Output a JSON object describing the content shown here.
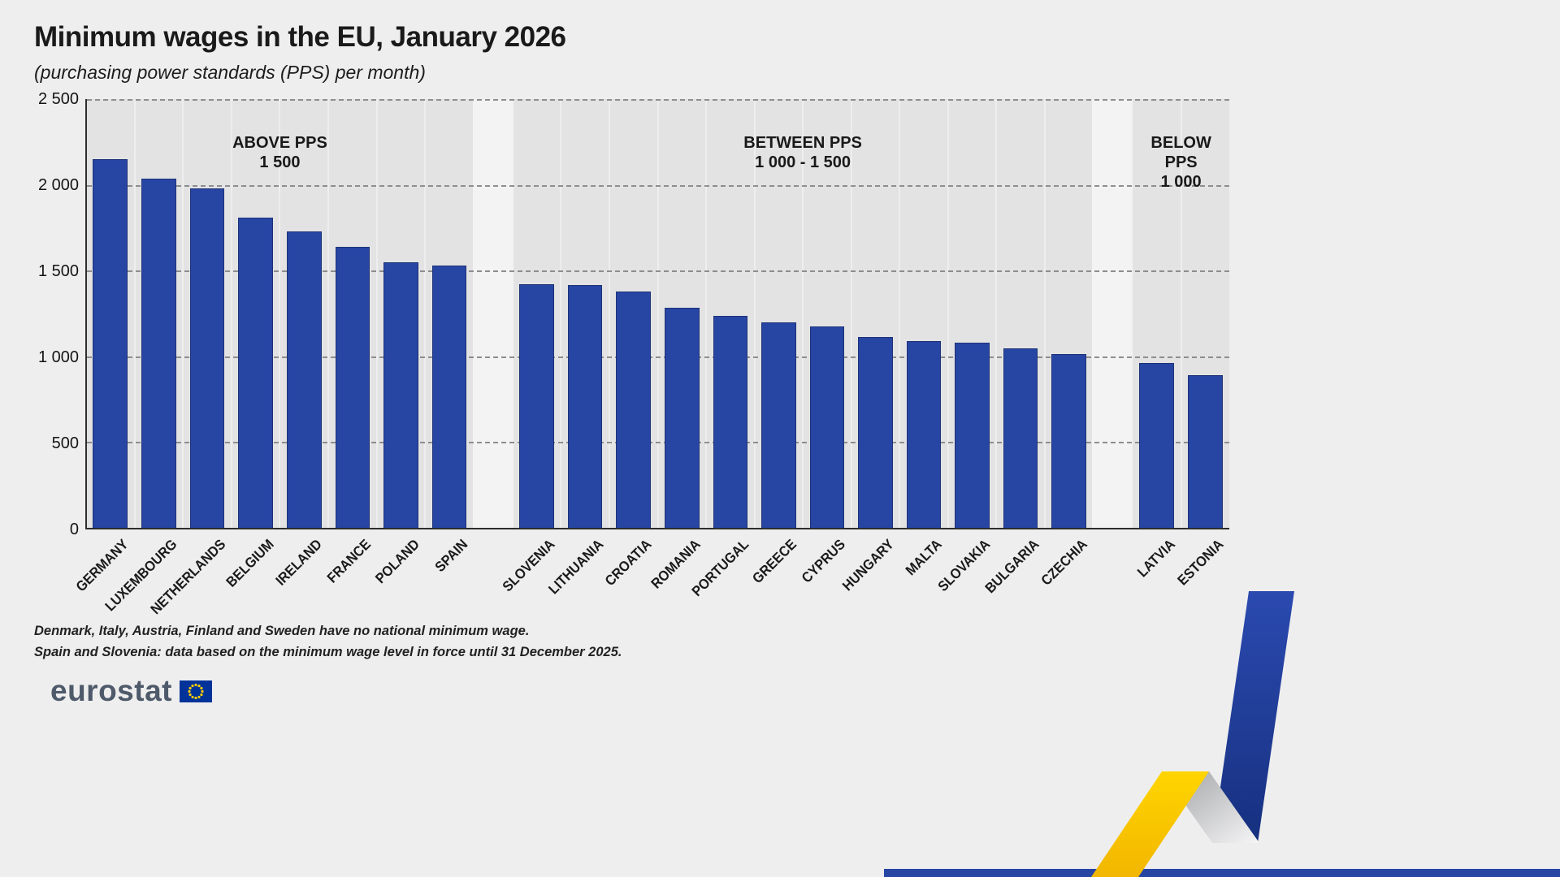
{
  "header": {
    "title": "Minimum wages in the EU, January 2026",
    "subtitle": "(purchasing power standards (PPS) per month)"
  },
  "chart_data": {
    "type": "bar",
    "title": "Minimum wages in the EU, January 2026",
    "subtitle": "(purchasing power standards (PPS) per month)",
    "unit": "PPS per month",
    "ylim": [
      0,
      2500
    ],
    "ytick_step": 500,
    "ytick_labels": [
      "0",
      "500",
      "1 000",
      "1 500",
      "2 000",
      "2 500"
    ],
    "grid": "horizontal dashed",
    "legend": "none",
    "bar_color": "#2745a3",
    "groups": [
      {
        "label_lines": [
          "ABOVE PPS",
          "1 500"
        ],
        "categories": [
          "GERMANY",
          "LUXEMBOURG",
          "NETHERLANDS",
          "BELGIUM",
          "IRELAND",
          "FRANCE",
          "POLAND",
          "SPAIN"
        ],
        "values": [
          2150,
          2035,
          1980,
          1810,
          1730,
          1640,
          1550,
          1530
        ]
      },
      {
        "label_lines": [
          "BETWEEN PPS",
          "1 000 - 1 500"
        ],
        "categories": [
          "SLOVENIA",
          "LITHUANIA",
          "CROATIA",
          "ROMANIA",
          "PORTUGAL",
          "GREECE",
          "CYPRUS",
          "HUNGARY",
          "MALTA",
          "SLOVAKIA",
          "BULGARIA",
          "CZECHIA"
        ],
        "values": [
          1420,
          1415,
          1380,
          1285,
          1235,
          1200,
          1175,
          1115,
          1090,
          1080,
          1045,
          1015
        ]
      },
      {
        "label_lines": [
          "BELOW PPS",
          "1 000"
        ],
        "categories": [
          "LATVIA",
          "ESTONIA"
        ],
        "values": [
          960,
          890
        ]
      }
    ]
  },
  "footnotes": [
    "Denmark, Italy, Austria, Finland and Sweden have no national minimum wage.",
    "Spain and Slovenia: data based on the minimum wage level in force until 31 December 2025."
  ],
  "footer": {
    "logo_text": "eurostat"
  },
  "colors": {
    "background": "#efeeef",
    "panel": "#e4e3e4",
    "bar": "#2745a3",
    "accent_yellow": "#fdc609",
    "accent_blue": "#2745a3",
    "eu_flag_blue": "#003399",
    "eu_flag_stars": "#ffcc00"
  }
}
